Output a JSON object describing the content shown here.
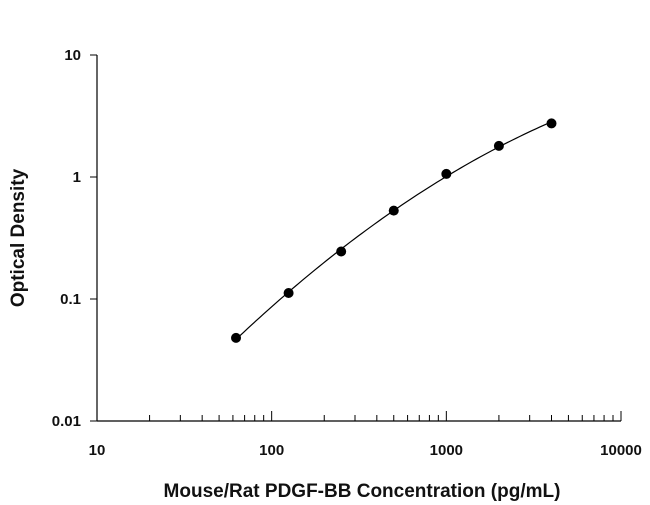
{
  "chart_data": {
    "type": "scatter",
    "title": "",
    "xlabel": "Mouse/Rat PDGF-BB Concentration (pg/mL)",
    "ylabel": "Optical Density",
    "x_scale": "log",
    "y_scale": "log",
    "xlim": [
      10,
      10000
    ],
    "ylim": [
      0.01,
      10
    ],
    "x_ticks": [
      "10",
      "100",
      "1000",
      "10000"
    ],
    "y_ticks": [
      "0.01",
      "0.1",
      "1",
      "10"
    ],
    "grid": false,
    "legend": "none",
    "series": [
      {
        "x": [
          62.5,
          125,
          250,
          500,
          1000,
          2000,
          4000
        ],
        "y": [
          0.048,
          0.112,
          0.245,
          0.53,
          1.06,
          1.8,
          2.75
        ],
        "marker": "circle",
        "color": "#000000",
        "fit": "smooth-curve"
      }
    ]
  }
}
